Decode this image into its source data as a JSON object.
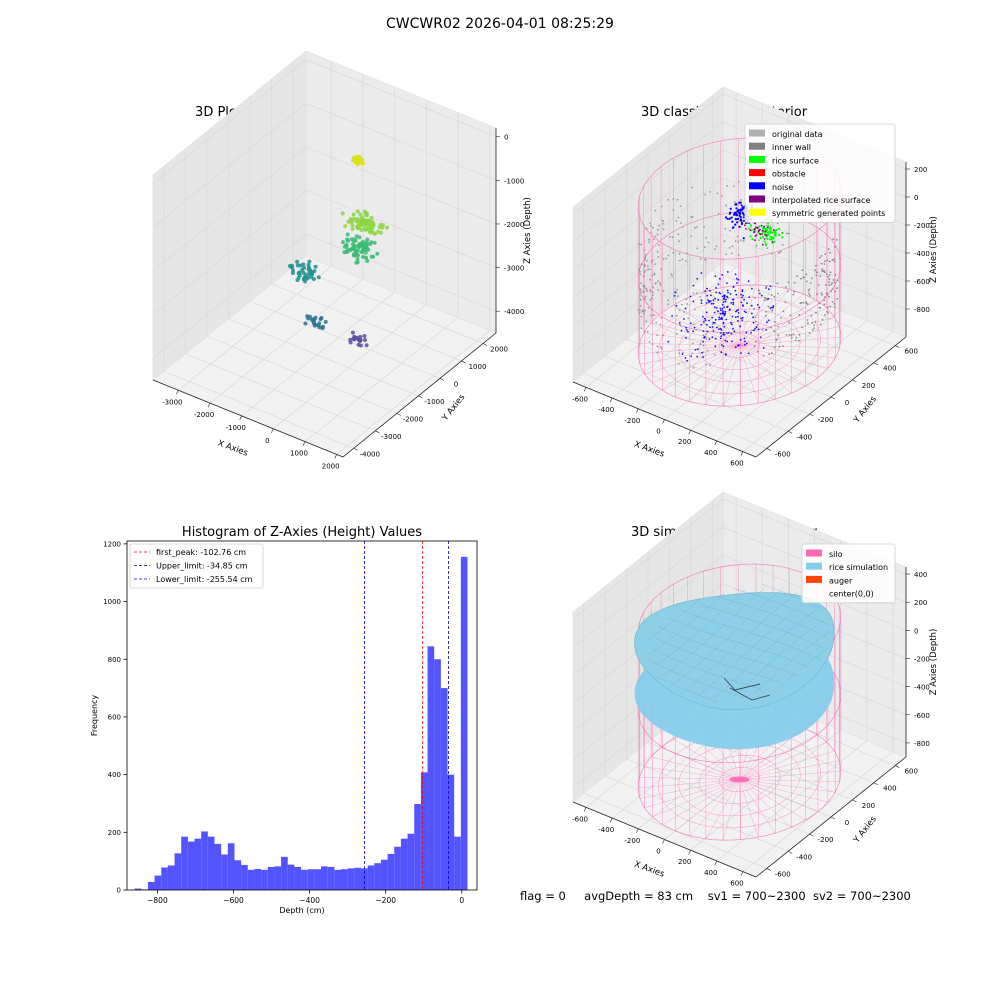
{
  "figure": {
    "suptitle": "CWCWR02 2026-04-01 08:25:29",
    "status": {
      "flag": "flag = 0",
      "avg_depth": "avgDepth = 83 cm",
      "sv1": "sv1 = 700~2300",
      "sv2": "sv2 = 700~2300"
    }
  },
  "colors": {
    "hist_bar": "#4B4BFF",
    "first_peak": "#FF0000",
    "limit": "#0000CC",
    "pane": "#F2F2F2",
    "grid": "#D9D9D9",
    "silo": "#FF69B4",
    "rice": "#87CEEB",
    "auger": "#FF4500"
  },
  "chart_data": [
    {
      "type": "scatter",
      "subtype": "3d",
      "title": "3D Plot of Silo Interior(row data)",
      "xlabel": "X Axies",
      "ylabel": "Y Axies",
      "zlabel": "Z Axies (Depth)",
      "xlim": [
        -3800,
        2200
      ],
      "ylim": [
        -4500,
        2600
      ],
      "zlim": [
        -4500,
        200
      ],
      "xticks": [
        -3000,
        -2000,
        -1000,
        0,
        1000,
        2000
      ],
      "yticks": [
        -4000,
        -3000,
        -2000,
        -1000,
        0,
        1000,
        2000
      ],
      "zticks": [
        0,
        -1000,
        -2000,
        -3000,
        -4000
      ],
      "colormap": "viridis",
      "clusters": [
        {
          "x": -1000,
          "y": 900,
          "z": -800,
          "n": 60,
          "spread": 200,
          "color": "#D8E219"
        },
        {
          "x": -400,
          "y": 400,
          "z": -1900,
          "n": 80,
          "spread": 700,
          "color": "#8ED645"
        },
        {
          "x": -300,
          "y": 0,
          "z": -2300,
          "n": 70,
          "spread": 800,
          "color": "#3BBB75"
        },
        {
          "x": -1600,
          "y": -600,
          "z": -3000,
          "n": 40,
          "spread": 700,
          "color": "#21908D"
        },
        {
          "x": -900,
          "y": -1300,
          "z": -3600,
          "n": 20,
          "spread": 500,
          "color": "#2C728E"
        },
        {
          "x": 600,
          "y": -1500,
          "z": -3500,
          "n": 20,
          "spread": 400,
          "color": "#5E4FA2"
        }
      ]
    },
    {
      "type": "scatter",
      "subtype": "3d",
      "title": "3D classify of Silo Interior",
      "xlabel": "X Axies",
      "ylabel": "Y Axies",
      "zlabel": "Z Axies (Depth)",
      "xlim": [
        -700,
        700
      ],
      "ylim": [
        -700,
        700
      ],
      "zlim": [
        -1000,
        250
      ],
      "xticks": [
        -600,
        -400,
        -200,
        0,
        200,
        400,
        600
      ],
      "yticks": [
        -600,
        -400,
        -200,
        0,
        200,
        400,
        600
      ],
      "zticks": [
        200,
        0,
        -200,
        -400,
        -600,
        -800
      ],
      "legend_loc": "upper right",
      "legend": [
        {
          "label": "original data",
          "color": "#B0B0B0"
        },
        {
          "label": "inner wall",
          "color": "#808080"
        },
        {
          "label": "rice surface",
          "color": "#00FF00"
        },
        {
          "label": "obstacle",
          "color": "#FF0000"
        },
        {
          "label": "noise",
          "color": "#0000FF"
        },
        {
          "label": "interpolated rice surface",
          "color": "#800080"
        },
        {
          "label": "symmetric generated points",
          "color": "#FFFF00"
        }
      ],
      "silo_radius": 600,
      "silo_top": 150,
      "silo_bottom": -900
    },
    {
      "type": "bar",
      "subtype": "histogram",
      "title": "Histogram of Z-Axies (Height) Values",
      "xlabel": "Depth (cm)",
      "ylabel": "Frequency",
      "xlim": [
        -880,
        40
      ],
      "ylim": [
        0,
        1210
      ],
      "xticks": [
        -800,
        -600,
        -400,
        -200,
        0
      ],
      "yticks": [
        0,
        200,
        400,
        600,
        800,
        1000,
        1200
      ],
      "bin_start": -860,
      "bin_width": 17.5,
      "values": [
        5,
        2,
        28,
        50,
        78,
        85,
        127,
        185,
        168,
        178,
        203,
        185,
        160,
        123,
        162,
        103,
        87,
        70,
        73,
        70,
        80,
        82,
        115,
        88,
        80,
        70,
        72,
        72,
        82,
        80,
        70,
        72,
        75,
        77,
        75,
        85,
        93,
        105,
        125,
        150,
        178,
        195,
        298,
        408,
        845,
        800,
        700,
        400,
        185,
        1155
      ],
      "vlines": [
        {
          "label": "first_peak: -102.76 cm",
          "x": -102.76,
          "color": "#FF0000"
        },
        {
          "label": "Upper_limit: -34.85 cm",
          "x": -34.85,
          "color": "#0000CC"
        },
        {
          "label": "Lower_limit: -255.54 cm",
          "x": -255.54,
          "color": "#0000CC"
        }
      ],
      "legend_loc": "upper left",
      "grid": false
    },
    {
      "type": "area",
      "subtype": "3d-surface",
      "title": "3D simulation of Silo Interior",
      "xlabel": "X Axies",
      "ylabel": "Y Axies",
      "zlabel": "Z Axies (Depth)",
      "xlim": [
        -700,
        700
      ],
      "ylim": [
        -700,
        700
      ],
      "zlim": [
        -900,
        450
      ],
      "xticks": [
        -600,
        -400,
        -200,
        0,
        200,
        400,
        600
      ],
      "yticks": [
        -600,
        -400,
        -200,
        0,
        200,
        400,
        600
      ],
      "zticks": [
        400,
        200,
        0,
        -200,
        -400,
        -600,
        -800
      ],
      "legend_loc": "upper right",
      "legend": [
        {
          "label": "silo",
          "color": "#FF69B4"
        },
        {
          "label": "rice simulation",
          "color": "#87CEEB"
        },
        {
          "label": "auger",
          "color": "#FF4500"
        },
        {
          "label": "center(0,0)",
          "color": ""
        }
      ],
      "silo_radius": 600,
      "silo_top": 200,
      "silo_bottom": -900,
      "rice_level": 70
    }
  ]
}
